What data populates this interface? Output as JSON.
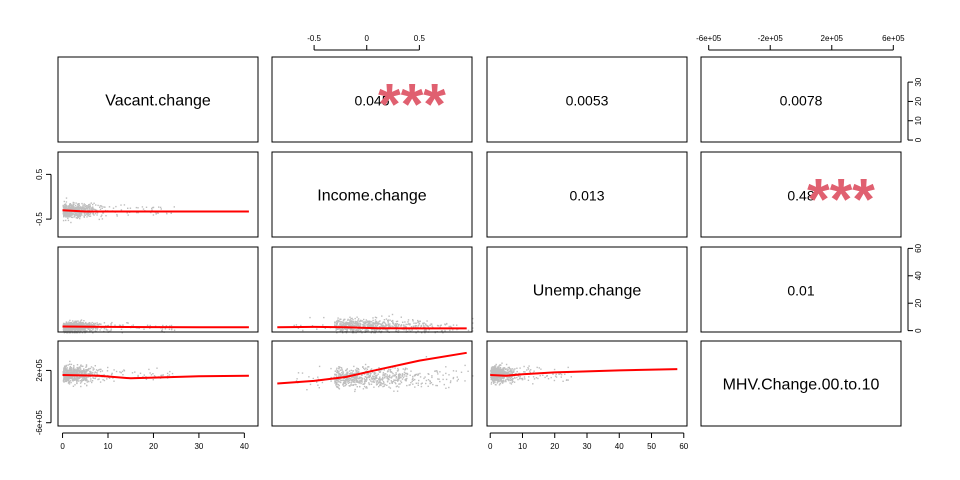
{
  "chart_data": {
    "type": "scatter",
    "variables": [
      "Vacant.change",
      "Income.change",
      "Unemp.change",
      "MHV.Change.00.to.10"
    ],
    "correlations": [
      {
        "row": 0,
        "col": 1,
        "value": "0.045",
        "stars": "***"
      },
      {
        "row": 0,
        "col": 2,
        "value": "0.0053",
        "stars": ""
      },
      {
        "row": 0,
        "col": 3,
        "value": "0.0078",
        "stars": ""
      },
      {
        "row": 1,
        "col": 2,
        "value": "0.013",
        "stars": ""
      },
      {
        "row": 1,
        "col": 3,
        "value": "0.48",
        "stars": "***"
      },
      {
        "row": 2,
        "col": 3,
        "value": "0.01",
        "stars": ""
      }
    ],
    "axes": {
      "top": [
        {
          "col": 1,
          "range": [
            -0.9,
            1.0
          ],
          "ticks": [
            -0.5,
            0,
            0.5
          ],
          "tick_labels": [
            "-0.5",
            "0",
            "0.5"
          ]
        },
        {
          "col": 3,
          "range": [
            -650000,
            650000
          ],
          "ticks": [
            -600000,
            -200000,
            200000,
            600000
          ],
          "tick_labels": [
            "-6e+05",
            "-2e+05",
            "2e+05",
            "6e+05"
          ]
        }
      ],
      "bottom": [
        {
          "col": 0,
          "range": [
            -1,
            43
          ],
          "ticks": [
            0,
            10,
            20,
            30,
            40
          ],
          "tick_labels": [
            "0",
            "10",
            "20",
            "30",
            "40"
          ]
        },
        {
          "col": 2,
          "range": [
            -1,
            61
          ],
          "ticks": [
            0,
            10,
            20,
            30,
            40,
            50,
            60
          ],
          "tick_labels": [
            "0",
            "10",
            "20",
            "30",
            "40",
            "50",
            "60"
          ]
        }
      ],
      "left": [
        {
          "row": 1,
          "range": [
            -0.9,
            1.0
          ],
          "ticks": [
            -0.5,
            0.5
          ],
          "tick_labels": [
            "-0.5",
            "0.5"
          ]
        },
        {
          "row": 3,
          "range": [
            -650000,
            650000
          ],
          "ticks": [
            -600000,
            200000
          ],
          "tick_labels": [
            "-6e+05",
            "2e+05"
          ]
        }
      ],
      "right": [
        {
          "row": 0,
          "range": [
            -1,
            43
          ],
          "ticks": [
            0,
            10,
            20,
            30
          ],
          "tick_labels": [
            "0",
            "10",
            "20",
            "30"
          ]
        },
        {
          "row": 2,
          "range": [
            -1,
            61
          ],
          "ticks": [
            0,
            20,
            40,
            60
          ],
          "tick_labels": [
            "0",
            "20",
            "40",
            "60"
          ]
        }
      ]
    },
    "scatter_panels": [
      {
        "row": 1,
        "col": 0,
        "x": "Vacant.change",
        "y": "Income.change",
        "cloud": {
          "x_range": [
            0,
            10
          ],
          "y_center": -0.3,
          "y_spread": 0.15,
          "tail_x": 25
        },
        "fit": [
          [
            0,
            -0.3
          ],
          [
            5,
            -0.33
          ],
          [
            10,
            -0.33
          ],
          [
            20,
            -0.33
          ],
          [
            30,
            -0.33
          ],
          [
            41,
            -0.33
          ]
        ]
      },
      {
        "row": 2,
        "col": 0,
        "x": "Vacant.change",
        "y": "Unemp.change",
        "cloud": {
          "x_range": [
            0,
            10
          ],
          "y_center": 3,
          "y_spread": 4,
          "tail_x": 25
        },
        "fit": [
          [
            0,
            3
          ],
          [
            10,
            2.7
          ],
          [
            20,
            2.6
          ],
          [
            30,
            2.5
          ],
          [
            41,
            2.5
          ]
        ]
      },
      {
        "row": 2,
        "col": 1,
        "x": "Income.change",
        "y": "Unemp.change",
        "cloud": {
          "x_range": [
            -0.7,
            0.6
          ],
          "y_center": 4,
          "y_spread": 5,
          "tail_x": 0.8
        },
        "fit": [
          [
            -0.85,
            2.5
          ],
          [
            -0.5,
            2.7
          ],
          [
            -0.2,
            2.4
          ],
          [
            0.1,
            1.8
          ],
          [
            0.5,
            1.6
          ],
          [
            0.95,
            1.6
          ]
        ]
      },
      {
        "row": 3,
        "col": 0,
        "x": "Vacant.change",
        "y": "MHV.Change.00.to.10",
        "cloud": {
          "x_range": [
            0,
            10
          ],
          "y_center": 150000,
          "y_spread": 120000,
          "tail_x": 25
        },
        "fit": [
          [
            0,
            130000
          ],
          [
            8,
            120000
          ],
          [
            15,
            80000
          ],
          [
            20,
            90000
          ],
          [
            30,
            110000
          ],
          [
            41,
            120000
          ]
        ]
      },
      {
        "row": 3,
        "col": 1,
        "x": "Income.change",
        "y": "MHV.Change.00.to.10",
        "cloud": {
          "x_range": [
            -0.7,
            0.6
          ],
          "y_center": 100000,
          "y_spread": 150000,
          "tail_x": 0.8
        },
        "fit": [
          [
            -0.85,
            0
          ],
          [
            -0.5,
            40000
          ],
          [
            -0.2,
            100000
          ],
          [
            0.1,
            210000
          ],
          [
            0.5,
            350000
          ],
          [
            0.95,
            470000
          ]
        ]
      },
      {
        "row": 3,
        "col": 2,
        "x": "Unemp.change",
        "y": "MHV.Change.00.to.10",
        "cloud": {
          "x_range": [
            0,
            10
          ],
          "y_center": 150000,
          "y_spread": 120000,
          "tail_x": 25
        },
        "fit": [
          [
            0,
            130000
          ],
          [
            5,
            120000
          ],
          [
            10,
            140000
          ],
          [
            20,
            170000
          ],
          [
            40,
            200000
          ],
          [
            58,
            220000
          ]
        ]
      }
    ],
    "colors": {
      "points": "#bebebe",
      "fit_line": "#ff0000",
      "stars": "#e06070",
      "frame": "#000000"
    }
  }
}
